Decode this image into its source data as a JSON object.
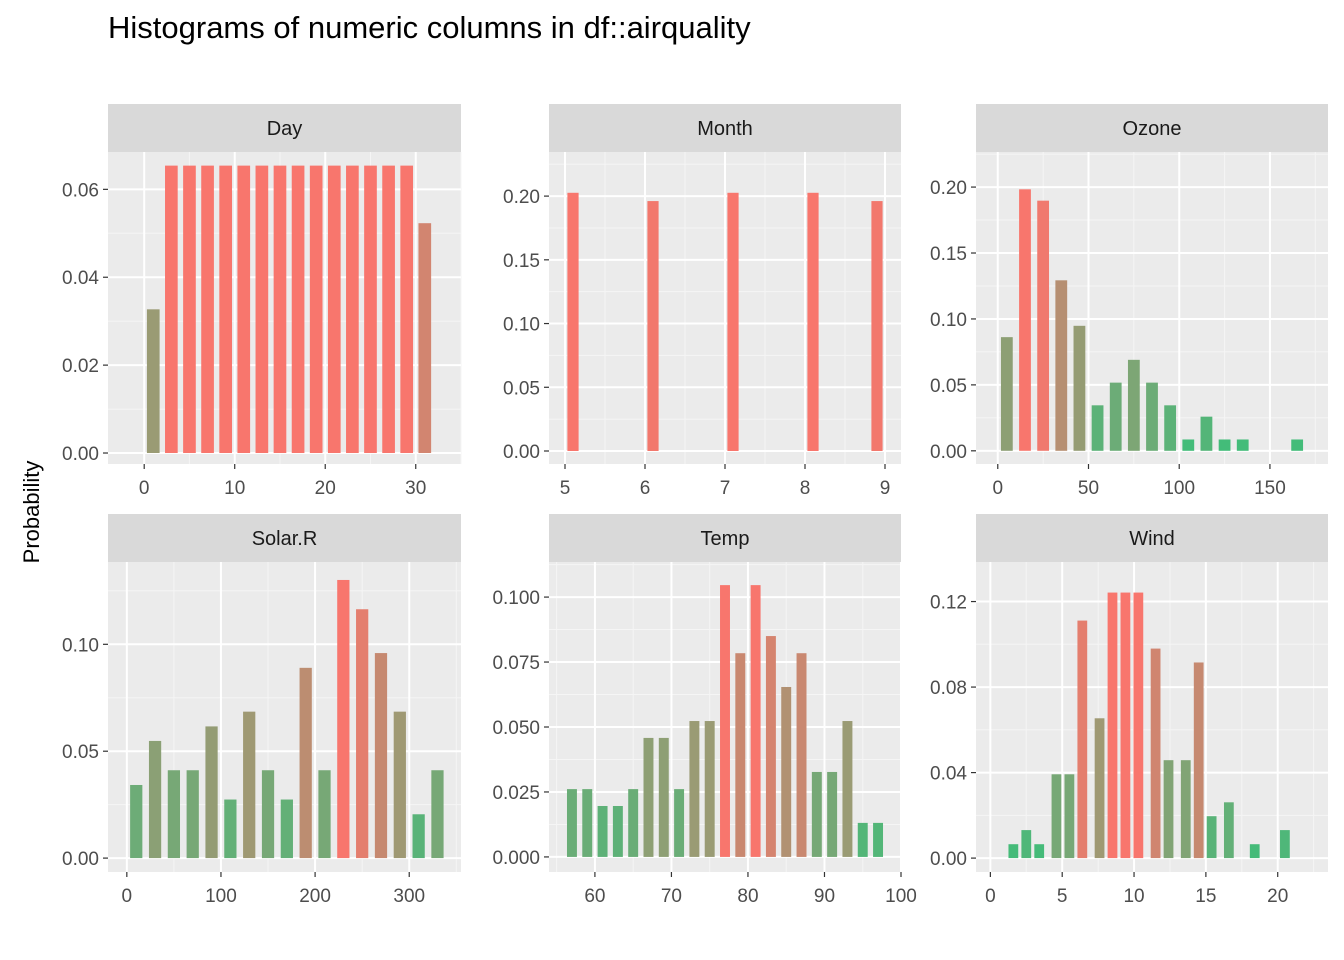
{
  "title": "Histograms of numeric columns in df::airquality",
  "ylabel": "Probability",
  "chart_data": {
    "type": "bar",
    "title": "Histograms of numeric columns in df::airquality",
    "ylabel": "Probability",
    "fill_gradient": {
      "high": "#f8766d",
      "low": "#3bbf7a"
    },
    "facets": [
      {
        "name": "Day",
        "xlim": [
          -4,
          35
        ],
        "ylim": [
          -0.0025,
          0.0685
        ],
        "xticks": [
          0,
          10,
          20,
          30
        ],
        "xtick_labels": [
          "0",
          "10",
          "20",
          "30"
        ],
        "yticks": [
          0,
          0.02,
          0.04,
          0.06
        ],
        "ytick_labels": [
          "0.00",
          "0.02",
          "0.04",
          "0.06"
        ],
        "bar_width": 1.4,
        "x": [
          1,
          3,
          5,
          7,
          9,
          11,
          13,
          15,
          17,
          19,
          21,
          23,
          25,
          27,
          29,
          31
        ],
        "values": [
          0.0327,
          0.0654,
          0.0654,
          0.0654,
          0.0654,
          0.0654,
          0.0654,
          0.0654,
          0.0654,
          0.0654,
          0.0654,
          0.0654,
          0.0654,
          0.0654,
          0.0654,
          0.0523
        ]
      },
      {
        "name": "Month",
        "xlim": [
          4.8,
          9.2
        ],
        "ylim": [
          -0.0102,
          0.2346
        ],
        "xticks": [
          5,
          6,
          7,
          8,
          9
        ],
        "xtick_labels": [
          "5",
          "6",
          "7",
          "8",
          "9"
        ],
        "yticks": [
          0,
          0.05,
          0.1,
          0.15,
          0.2
        ],
        "ytick_labels": [
          "0.00",
          "0.05",
          "0.10",
          "0.15",
          "0.20"
        ],
        "bar_width": 0.14,
        "x": [
          5.1,
          6.1,
          7.1,
          8.1,
          8.9
        ],
        "values": [
          0.2026,
          0.1961,
          0.2026,
          0.2026,
          0.1961
        ]
      },
      {
        "name": "Ozone",
        "xlim": [
          -12,
          182
        ],
        "ylim": [
          -0.01,
          0.2266
        ],
        "xticks": [
          0,
          50,
          100,
          150
        ],
        "xtick_labels": [
          "0",
          "50",
          "100",
          "150"
        ],
        "yticks": [
          0,
          0.05,
          0.1,
          0.15,
          0.2
        ],
        "ytick_labels": [
          "0.00",
          "0.05",
          "0.10",
          "0.15",
          "0.20"
        ],
        "bar_width": 6.5,
        "x": [
          5,
          15,
          25,
          35,
          45,
          55,
          65,
          75,
          85,
          95,
          105,
          115,
          125,
          135,
          165
        ],
        "values": [
          0.0862,
          0.1983,
          0.1897,
          0.1293,
          0.0948,
          0.0345,
          0.0517,
          0.069,
          0.0517,
          0.0345,
          0.0086,
          0.0259,
          0.0086,
          0.0086,
          0.0086
        ]
      },
      {
        "name": "Solar.R",
        "xlim": [
          -20,
          355
        ],
        "ylim": [
          -0.0065,
          0.1385
        ],
        "xticks": [
          0,
          100,
          200,
          300
        ],
        "xtick_labels": [
          "0",
          "100",
          "200",
          "300"
        ],
        "bar_width": 13,
        "yticks": [
          0,
          0.05,
          0.1
        ],
        "ytick_labels": [
          "0.00",
          "0.05",
          "0.10"
        ],
        "x": [
          10,
          30,
          50,
          70,
          90,
          110,
          130,
          150,
          170,
          190,
          210,
          230,
          250,
          270,
          290,
          310,
          330
        ],
        "values": [
          0.0342,
          0.0548,
          0.0411,
          0.0411,
          0.0616,
          0.0274,
          0.0685,
          0.0411,
          0.0274,
          0.089,
          0.0411,
          0.1301,
          0.1164,
          0.0959,
          0.0685,
          0.0205,
          0.0411
        ]
      },
      {
        "name": "Temp",
        "xlim": [
          54,
          100
        ],
        "ylim": [
          -0.0058,
          0.1135
        ],
        "xticks": [
          60,
          70,
          80,
          90,
          100
        ],
        "xtick_labels": [
          "60",
          "70",
          "80",
          "90",
          "100"
        ],
        "yticks": [
          0,
          0.025,
          0.05,
          0.075,
          0.1
        ],
        "ytick_labels": [
          "0.000",
          "0.025",
          "0.050",
          "0.075",
          "0.100"
        ],
        "bar_width": 1.3,
        "x": [
          57,
          59,
          61,
          63,
          65,
          67,
          69,
          71,
          73,
          75,
          77,
          79,
          81,
          83,
          85,
          87,
          89,
          91,
          93,
          95,
          97
        ],
        "values": [
          0.0261,
          0.0261,
          0.0196,
          0.0196,
          0.0261,
          0.0458,
          0.0458,
          0.0261,
          0.0523,
          0.0523,
          0.1046,
          0.0784,
          0.1046,
          0.085,
          0.0654,
          0.0784,
          0.0327,
          0.0327,
          0.0523,
          0.0131,
          0.0131
        ]
      },
      {
        "name": "Wind",
        "xlim": [
          -1,
          23.5
        ],
        "ylim": [
          -0.0065,
          0.1385
        ],
        "xticks": [
          0,
          5,
          10,
          15,
          20
        ],
        "xtick_labels": [
          "0",
          "5",
          "10",
          "15",
          "20"
        ],
        "yticks": [
          0,
          0.04,
          0.08,
          0.12
        ],
        "ytick_labels": [
          "0.00",
          "0.04",
          "0.08",
          "0.12"
        ],
        "bar_width": 0.68,
        "x": [
          1.6,
          2.5,
          3.4,
          4.6,
          5.5,
          6.4,
          7.6,
          8.5,
          9.4,
          10.3,
          11.5,
          12.4,
          13.6,
          14.5,
          15.4,
          16.6,
          18.4,
          20.5
        ],
        "values": [
          0.0065,
          0.0131,
          0.0065,
          0.0392,
          0.0392,
          0.1111,
          0.0654,
          0.1242,
          0.1242,
          0.1242,
          0.098,
          0.0458,
          0.0458,
          0.0915,
          0.0196,
          0.0261,
          0.0065,
          0.0131
        ]
      }
    ]
  }
}
